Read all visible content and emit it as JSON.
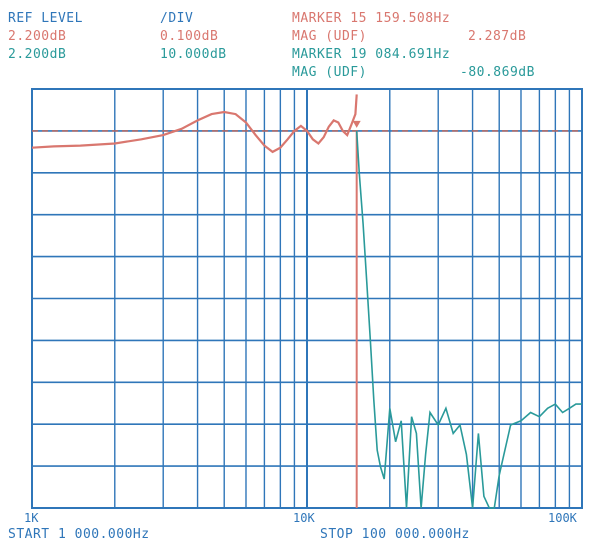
{
  "header": {
    "ref_level_label": "REF LEVEL",
    "div_label": "/DIV",
    "ref_level_ch1": "2.200dB",
    "div_ch1": "0.100dB",
    "ref_level_ch2": "2.200dB",
    "div_ch2": "10.000dB",
    "marker1_label": "MARKER 15 159.508Hz",
    "mag1_label": "MAG (UDF)",
    "mag1_value": "2.287dB",
    "marker2_label": "MARKER 19 084.691Hz",
    "mag2_label": "MAG (UDF)",
    "mag2_value": "-80.869dB"
  },
  "footer": {
    "start_label": "START 1 000.000Hz",
    "stop_label": "STOP 100 000.000Hz"
  },
  "colors": {
    "grid": "#2f76b9",
    "trace_passband": "#d9776f",
    "trace_stopband": "#2a9a9a",
    "ref_line": "#c06458"
  },
  "chart_data": {
    "type": "line",
    "x_scale": "log",
    "x_range": [
      1000,
      100000
    ],
    "x_ticks": [
      {
        "value": 1000,
        "label": "1K"
      },
      {
        "value": 10000,
        "label": "10K"
      },
      {
        "value": 100000,
        "label": "100K"
      }
    ],
    "grid": true,
    "y_divisions": 10,
    "marker_freq": 15159.508,
    "series": [
      {
        "trace": "passband",
        "ref_db": 2.2,
        "db_per_div": 0.1,
        "x": [
          1000,
          1200,
          1500,
          2000,
          2500,
          3000,
          3500,
          4000,
          4500,
          5000,
          5500,
          6000,
          6500,
          7000,
          7500,
          8000,
          8500,
          9000,
          9500,
          10000,
          10500,
          11000,
          11500,
          12000,
          12500,
          13000,
          13500,
          14000,
          14500,
          15000,
          15159.508
        ],
        "y": [
          2.16,
          2.163,
          2.165,
          2.17,
          2.18,
          2.19,
          2.205,
          2.225,
          2.24,
          2.245,
          2.24,
          2.22,
          2.19,
          2.165,
          2.15,
          2.16,
          2.18,
          2.2,
          2.212,
          2.2,
          2.18,
          2.17,
          2.185,
          2.21,
          2.225,
          2.22,
          2.2,
          2.19,
          2.215,
          2.24,
          2.287
        ]
      },
      {
        "trace": "stopband",
        "ref_db": 2.2,
        "db_per_div": 10,
        "x": [
          15159.508,
          15500,
          16000,
          16500,
          17000,
          17500,
          18000,
          18500,
          19084.691,
          20000,
          21000,
          22000,
          23000,
          24000,
          25000,
          26000,
          27000,
          28000,
          30000,
          32000,
          34000,
          36000,
          38000,
          40000,
          42000,
          44000,
          46000,
          48000,
          50000,
          55000,
          60000,
          65000,
          70000,
          75000,
          80000,
          85000,
          90000,
          95000,
          100000
        ],
        "y": [
          2.2,
          -8,
          -20,
          -34,
          -48,
          -62,
          -74,
          -78,
          -80.869,
          -64,
          -72,
          -67,
          -88,
          -66,
          -70,
          -88,
          -75,
          -65,
          -68,
          -64,
          -70,
          -68,
          -75,
          -88,
          -70,
          -85,
          -92,
          -88,
          -80,
          -68,
          -67,
          -65,
          -66,
          -64,
          -63,
          -65,
          -64,
          -63,
          -63
        ]
      }
    ]
  }
}
